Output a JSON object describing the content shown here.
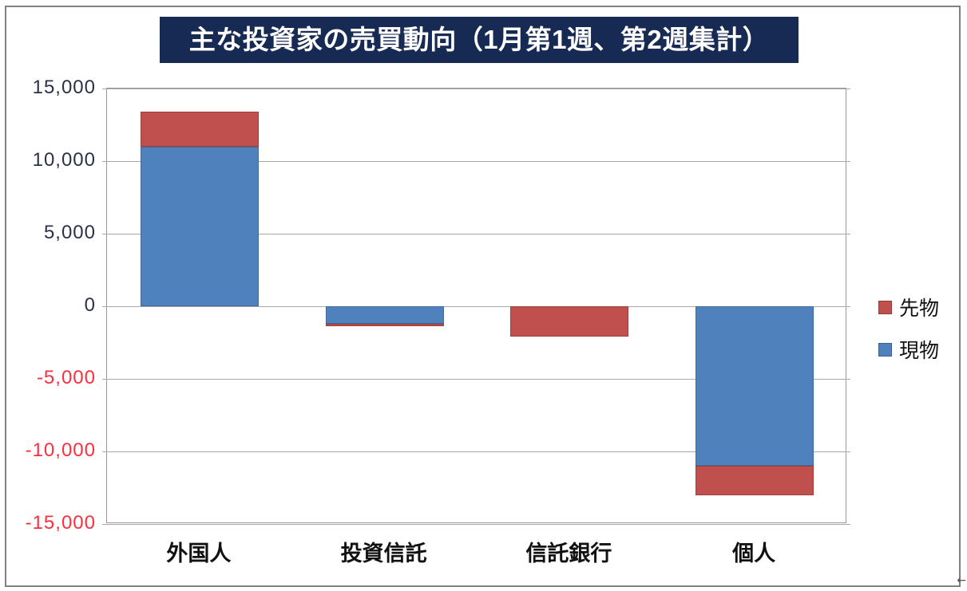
{
  "chart_data": {
    "type": "bar",
    "stacked": true,
    "title": "主な投資家の売買動向（1月第1週、第2週集計）",
    "categories": [
      "外国人",
      "投資信託",
      "信託銀行",
      "個人"
    ],
    "series": [
      {
        "name": "現物",
        "color": "#4F81BD",
        "values": [
          11000,
          -1200,
          0,
          -11000
        ]
      },
      {
        "name": "先物",
        "color": "#C0504D",
        "values": [
          2400,
          -200,
          -2100,
          -2000
        ]
      }
    ],
    "ylim": [
      -15000,
      15000
    ],
    "ytick_step": 5000,
    "yticks": [
      {
        "value": 15000,
        "label": "15,000"
      },
      {
        "value": 10000,
        "label": "10,000"
      },
      {
        "value": 5000,
        "label": "5,000"
      },
      {
        "value": 0,
        "label": "0"
      },
      {
        "value": -5000,
        "label": "-5,000"
      },
      {
        "value": -10000,
        "label": "-10,000"
      },
      {
        "value": -15000,
        "label": "-15,000"
      }
    ],
    "grid": true,
    "legend_position": "right"
  },
  "legend": {
    "items": [
      {
        "label": "先物",
        "color": "#C0504D"
      },
      {
        "label": "現物",
        "color": "#4F81BD"
      }
    ]
  },
  "colors": {
    "title_bg": "#172A54",
    "title_text": "#FFFFFF",
    "positive_tick": "#2B3148",
    "negative_tick": "#FF2E3E",
    "gridline": "#A9A9A9",
    "frame_border": "#808080"
  },
  "artifact": {
    "glyph": "←"
  }
}
